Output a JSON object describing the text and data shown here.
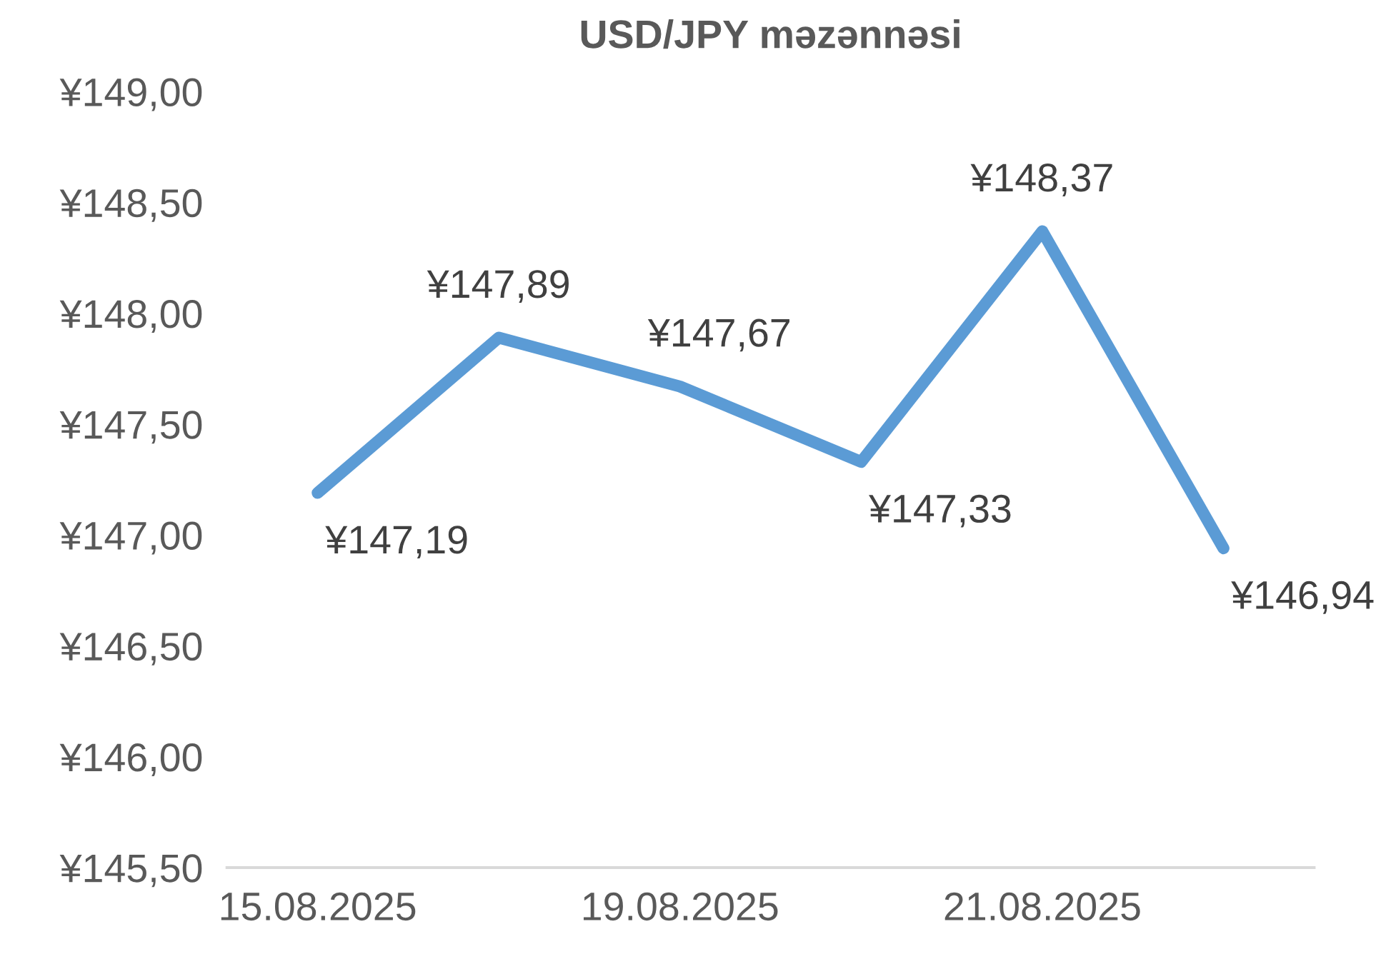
{
  "chart_data": {
    "type": "line",
    "title": "USD/JPY məzənnəsi",
    "categories": [
      "15.08.2025",
      null,
      "19.08.2025",
      null,
      "21.08.2025",
      null
    ],
    "series": [
      {
        "color": "#5b9bd5",
        "values": [
          147.19,
          147.89,
          147.67,
          147.33,
          148.37,
          146.94
        ],
        "value_labels": [
          "¥147,19",
          "¥147,89",
          "¥147,67",
          "¥147,33",
          "¥148,37",
          "¥146,94"
        ]
      }
    ],
    "ylim": [
      145.5,
      149
    ],
    "yticks": [
      {
        "value": 145.5,
        "label": "¥145,50"
      },
      {
        "value": 146,
        "label": "¥146,00"
      },
      {
        "value": 146.5,
        "label": "¥146,50"
      },
      {
        "value": 147,
        "label": "¥147,00"
      },
      {
        "value": 147.5,
        "label": "¥147,50"
      },
      {
        "value": 148,
        "label": "¥148,00"
      },
      {
        "value": 148.5,
        "label": "¥148,50"
      },
      {
        "value": 149,
        "label": "¥149,00"
      }
    ],
    "grid": false,
    "legend": false,
    "marker": "none",
    "line_style": "solid"
  }
}
